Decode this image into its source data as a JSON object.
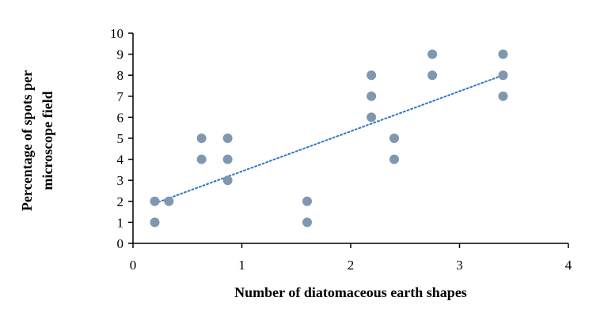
{
  "chart_data": {
    "type": "scatter",
    "title": "",
    "xlabel": "Number of diatomaceous earth shapes",
    "ylabel_lines": [
      "Percentage of spots per",
      "microscope field"
    ],
    "ylabel": "Percentage of spots per microscope field",
    "xlim": [
      0,
      4
    ],
    "ylim": [
      0,
      10
    ],
    "xticks": [
      0,
      1,
      2,
      3,
      4
    ],
    "yticks": [
      0,
      1,
      2,
      3,
      4,
      5,
      6,
      7,
      8,
      9,
      10
    ],
    "grid": false,
    "legend": null,
    "series": [
      {
        "name": "data",
        "color": "#7f97b0",
        "points": [
          [
            0.2,
            1
          ],
          [
            0.2,
            2
          ],
          [
            0.33,
            2
          ],
          [
            0.63,
            4
          ],
          [
            0.63,
            5
          ],
          [
            0.87,
            3
          ],
          [
            0.87,
            4
          ],
          [
            0.87,
            5
          ],
          [
            1.6,
            1
          ],
          [
            1.6,
            2
          ],
          [
            2.19,
            6
          ],
          [
            2.19,
            7
          ],
          [
            2.19,
            8
          ],
          [
            2.4,
            4
          ],
          [
            2.4,
            5
          ],
          [
            2.75,
            8
          ],
          [
            2.75,
            9
          ],
          [
            3.4,
            7
          ],
          [
            3.4,
            8
          ],
          [
            3.4,
            9
          ]
        ]
      }
    ],
    "trendline": {
      "type": "linear",
      "style": "dotted",
      "color": "#2e75c8",
      "from": [
        0.2,
        1.9
      ],
      "to": [
        3.4,
        8.0
      ]
    }
  }
}
